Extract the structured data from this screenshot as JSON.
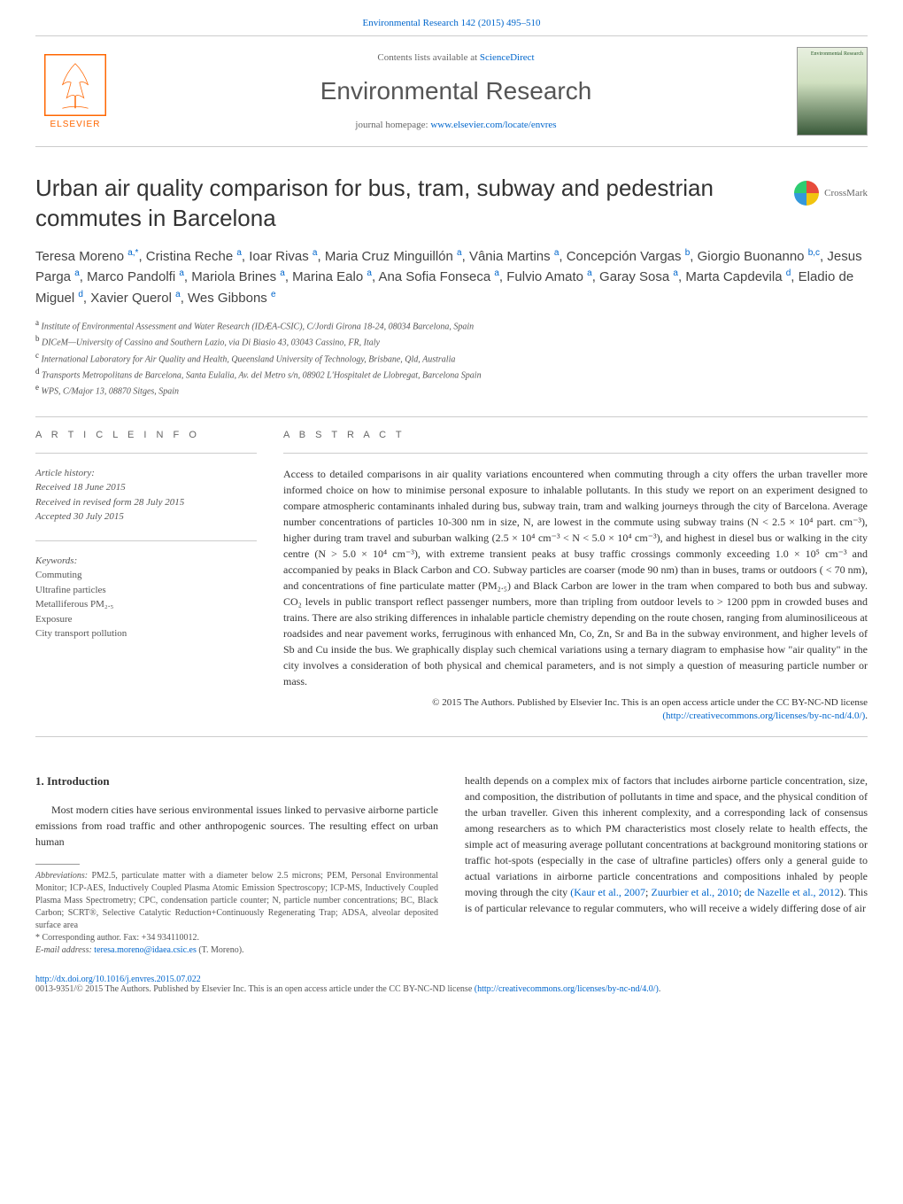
{
  "top_link": {
    "journal": "Environmental Research",
    "volume_pages": "142 (2015) 495–510"
  },
  "header": {
    "publisher_name": "ELSEVIER",
    "contents_text": "Contents lists available at",
    "contents_link": "ScienceDirect",
    "journal_name": "Environmental Research",
    "homepage_text": "journal homepage:",
    "homepage_url": "www.elsevier.com/locate/envres",
    "cover_label": "Environmental Research"
  },
  "article": {
    "title": "Urban air quality comparison for bus, tram, subway and pedestrian commutes in Barcelona",
    "crossmark": "CrossMark"
  },
  "authors_html": "Teresa Moreno <span class='sup'>a,*</span>, Cristina Reche <span class='sup'>a</span>, Ioar Rivas <span class='sup'>a</span>, Maria Cruz Minguillón <span class='sup'>a</span>, Vânia Martins <span class='sup'>a</span>, Concepción Vargas <span class='sup'>b</span>, Giorgio Buonanno <span class='sup'>b,c</span>, Jesus Parga <span class='sup'>a</span>, Marco Pandolfi <span class='sup'>a</span>, Mariola Brines <span class='sup'>a</span>, Marina Ealo <span class='sup'>a</span>, Ana Sofia Fonseca <span class='sup'>a</span>, Fulvio Amato <span class='sup'>a</span>, Garay Sosa <span class='sup'>a</span>, Marta Capdevila <span class='sup'>d</span>, Eladio de Miguel <span class='sup'>d</span>, Xavier Querol <span class='sup'>a</span>, Wes Gibbons <span class='sup'>e</span>",
  "affiliations": [
    {
      "sup": "a",
      "text": "Institute of Environmental Assessment and Water Research (IDÆA-CSIC), C/Jordi Girona 18-24, 08034 Barcelona, Spain"
    },
    {
      "sup": "b",
      "text": "DICeM—University of Cassino and Southern Lazio, via Di Biasio 43, 03043 Cassino, FR, Italy"
    },
    {
      "sup": "c",
      "text": "International Laboratory for Air Quality and Health, Queensland University of Technology, Brisbane, Qld, Australia"
    },
    {
      "sup": "d",
      "text": "Transports Metropolitans de Barcelona, Santa Eulalia, Av. del Metro s/n, 08902 L'Hospitalet de Llobregat, Barcelona Spain"
    },
    {
      "sup": "e",
      "text": "WPS, C/Major 13, 08870 Sitges, Spain"
    }
  ],
  "article_info": {
    "heading": "A R T I C L E  I N F O",
    "history_label": "Article history:",
    "received": "Received 18 June 2015",
    "revised": "Received in revised form 28 July 2015",
    "accepted": "Accepted 30 July 2015",
    "keywords_label": "Keywords:",
    "keywords": [
      "Commuting",
      "Ultrafine particles",
      "Metalliferous PM₂.₅",
      "Exposure",
      "City transport pollution"
    ]
  },
  "abstract": {
    "heading": "A B S T R A C T",
    "text": "Access to detailed comparisons in air quality variations encountered when commuting through a city offers the urban traveller more informed choice on how to minimise personal exposure to inhalable pollutants. In this study we report on an experiment designed to compare atmospheric contaminants inhaled during bus, subway train, tram and walking journeys through the city of Barcelona. Average number concentrations of particles 10-300 nm in size, N, are lowest in the commute using subway trains (N < 2.5 × 10⁴ part. cm⁻³), higher during tram travel and suburban walking (2.5 × 10⁴ cm⁻³ < N < 5.0 × 10⁴ cm⁻³), and highest in diesel bus or walking in the city centre (N > 5.0 × 10⁴ cm⁻³), with extreme transient peaks at busy traffic crossings commonly exceeding 1.0 × 10⁵ cm⁻³ and accompanied by peaks in Black Carbon and CO. Subway particles are coarser (mode 90 nm) than in buses, trams or outdoors ( < 70 nm), and concentrations of fine particulate matter (PM₂.₅) and Black Carbon are lower in the tram when compared to both bus and subway. CO₂ levels in public transport reflect passenger numbers, more than tripling from outdoor levels to > 1200 ppm in crowded buses and trains. There are also striking differences in inhalable particle chemistry depending on the route chosen, ranging from aluminosiliceous at roadsides and near pavement works, ferruginous with enhanced Mn, Co, Zn, Sr and Ba in the subway environment, and higher levels of Sb and Cu inside the bus. We graphically display such chemical variations using a ternary diagram to emphasise how \"air quality\" in the city involves a consideration of both physical and chemical parameters, and is not simply a question of measuring particle number or mass.",
    "copyright": "© 2015 The Authors. Published by Elsevier Inc. This is an open access article under the CC BY-NC-ND license",
    "license_url": "(http://creativecommons.org/licenses/by-nc-nd/4.0/)"
  },
  "intro": {
    "heading": "1.  Introduction",
    "left_para": "Most modern cities have serious environmental issues linked to pervasive airborne particle emissions from road traffic and other anthropogenic sources. The resulting effect on urban human",
    "right_para_1": "health depends on a complex mix of factors that includes airborne particle concentration, size, and composition, the distribution of pollutants in time and space, and the physical condition of the urban traveller. Given this inherent complexity, and a corresponding lack of consensus among researchers as to which PM characteristics most closely relate to health effects, the simple act of measuring average pollutant concentrations at background monitoring stations or traffic hot-spots (especially in the case of ultrafine particles) offers only a general guide to actual variations in airborne particle concentrations and compositions inhaled by people moving through the city ",
    "cite1": "(Kaur et al., 2007",
    "cite_sep1": "; ",
    "cite2": "Zuurbier et al., 2010",
    "cite_sep2": "; ",
    "cite3": "de Nazelle et al., 2012",
    "right_para_2": "). This is of particular relevance to regular commuters, who will receive a widely differing dose of air"
  },
  "footnotes": {
    "abbrev_label": "Abbreviations:",
    "abbrev_text": " PM2.5, particulate matter with a diameter below 2.5 microns; PEM, Personal Environmental Monitor; ICP-AES, Inductively Coupled Plasma Atomic Emission Spectroscopy; ICP-MS, Inductively Coupled Plasma Mass Spectrometry; CPC, condensation particle counter; N, particle number concentrations; BC, Black Carbon; SCRT®, Selective Catalytic Reduction+Continuously Regenerating Trap; ADSA, alveolar deposited surface area",
    "corr_label": "* Corresponding author. Fax: +34 934110012.",
    "email_label": "E-mail address:",
    "email": "teresa.moreno@idaea.csic.es",
    "email_name": " (T. Moreno)."
  },
  "footer": {
    "doi": "http://dx.doi.org/10.1016/j.envres.2015.07.022",
    "issn_line": "0013-9351/© 2015 The Authors. Published by Elsevier Inc. This is an open access article under the CC BY-NC-ND license ",
    "license_url": "(http://creativecommons.org/licenses/by-nc-nd/4.0/)"
  },
  "colors": {
    "link": "#0066cc",
    "text": "#333333",
    "muted": "#666666",
    "elsevier": "#ff6600"
  }
}
